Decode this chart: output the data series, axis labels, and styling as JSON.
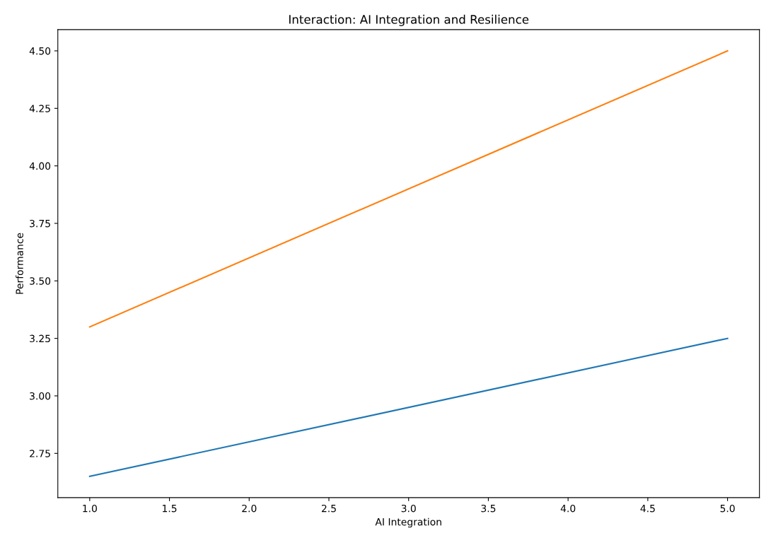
{
  "chart_data": {
    "type": "line",
    "title": "Interaction: AI Integration and Resilience",
    "xlabel": "AI Integration",
    "ylabel": "Performance",
    "x": [
      1.0,
      5.0
    ],
    "series": [
      {
        "color": "#1f77b4",
        "values": [
          2.65,
          3.25
        ]
      },
      {
        "color": "#ff7f0e",
        "values": [
          3.3,
          4.5
        ]
      }
    ],
    "xlim": [
      0.8,
      5.2
    ],
    "xticks": [
      {
        "value": 1.0,
        "label": "1.0"
      },
      {
        "value": 1.5,
        "label": "1.5"
      },
      {
        "value": 2.0,
        "label": "2.0"
      },
      {
        "value": 2.5,
        "label": "2.5"
      },
      {
        "value": 3.0,
        "label": "3.0"
      },
      {
        "value": 3.5,
        "label": "3.5"
      },
      {
        "value": 4.0,
        "label": "4.0"
      },
      {
        "value": 4.5,
        "label": "4.5"
      },
      {
        "value": 5.0,
        "label": "5.0"
      }
    ],
    "ylim": [
      2.5575,
      4.5925
    ],
    "yticks": [
      {
        "value": 2.75,
        "label": "2.75"
      },
      {
        "value": 3.0,
        "label": "3.00"
      },
      {
        "value": 3.25,
        "label": "3.25"
      },
      {
        "value": 3.5,
        "label": "3.50"
      },
      {
        "value": 3.75,
        "label": "3.75"
      },
      {
        "value": 4.0,
        "label": "4.00"
      },
      {
        "value": 4.25,
        "label": "4.25"
      },
      {
        "value": 4.5,
        "label": "4.50"
      }
    ],
    "grid": false,
    "legend": false,
    "marker": "none",
    "line_style": "solid"
  }
}
